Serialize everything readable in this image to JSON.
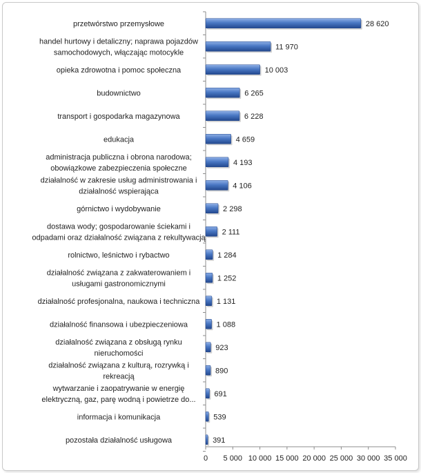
{
  "chart_data": {
    "type": "bar",
    "orientation": "horizontal",
    "title": "",
    "xlabel": "",
    "ylabel": "",
    "xlim": [
      0,
      35000
    ],
    "ticks": [
      0,
      5000,
      10000,
      15000,
      20000,
      25000,
      30000,
      35000
    ],
    "tick_labels": [
      "0",
      "5 000",
      "10 000",
      "15 000",
      "20 000",
      "25 000",
      "30 000",
      "35 000"
    ],
    "grid": false,
    "legend": "none",
    "bar_color": "#3a66b0",
    "categories": [
      [
        "przetwórstwo przemysłowe"
      ],
      [
        "handel hurtowy i detaliczny; naprawa pojazdów",
        "samochodowych, włączając motocykle"
      ],
      [
        "opieka zdrowotna i pomoc społeczna"
      ],
      [
        "budownictwo"
      ],
      [
        "transport i gospodarka magazynowa"
      ],
      [
        "edukacja"
      ],
      [
        "administracja publiczna i obrona narodowa;",
        "obowiązkowe zabezpieczenia społeczne"
      ],
      [
        "działalność w zakresie usług administrowania i",
        "działalność wspierająca"
      ],
      [
        "górnictwo i wydobywanie"
      ],
      [
        "dostawa wody; gospodarowanie ściekami i",
        "odpadami oraz działalność związana z rekultywacją"
      ],
      [
        "rolnictwo, leśnictwo i rybactwo"
      ],
      [
        "działalność związana z zakwaterowaniem i",
        "usługami gastronomicznymi"
      ],
      [
        "działalność profesjonalna, naukowa i techniczna"
      ],
      [
        "działalność finansowa i ubezpieczeniowa"
      ],
      [
        "działalność związana z obsługą rynku",
        "nieruchomości"
      ],
      [
        "działalność związana z kulturą, rozrywką i",
        "rekreacją"
      ],
      [
        "wytwarzanie i zaopatrywanie w energię",
        "elektryczną, gaz, parę wodną i powietrze do..."
      ],
      [
        "informacja i komunikacja"
      ],
      [
        "pozostała działalność usługowa"
      ]
    ],
    "values": [
      28620,
      11970,
      10003,
      6265,
      6228,
      4659,
      4193,
      4106,
      2298,
      2111,
      1284,
      1252,
      1131,
      1088,
      923,
      890,
      691,
      539,
      391
    ],
    "value_labels": [
      "28 620",
      "11 970",
      "10 003",
      "6 265",
      "6 228",
      "4 659",
      "4 193",
      "4 106",
      "2 298",
      "2 111",
      "1 284",
      "1 252",
      "1 131",
      "1 088",
      "923",
      "890",
      "691",
      "539",
      "391"
    ]
  }
}
